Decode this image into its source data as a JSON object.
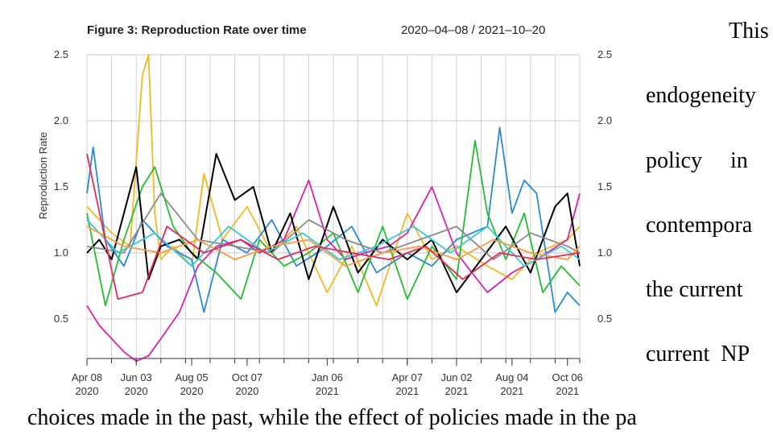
{
  "chart_data": {
    "type": "line",
    "title": "Figure 3: Reproduction Rate over time",
    "date_range": "2020–04–08 / 2021–10–20",
    "xlabel": "",
    "ylabel": "Reproduction Rate",
    "xlim": [
      "2020-04-08",
      "2021-10-20"
    ],
    "ylim": [
      0.2,
      2.5
    ],
    "yticks": [
      "0.5",
      "1.0",
      "1.5",
      "2.0",
      "2.5"
    ],
    "xticks": [
      {
        "date": "2020-04-08",
        "label": [
          "Apr 08",
          "2020"
        ]
      },
      {
        "date": "2020-06-03",
        "label": [
          "Jun 03",
          "2020"
        ]
      },
      {
        "date": "2020-08-05",
        "label": [
          "Aug 05",
          "2020"
        ]
      },
      {
        "date": "2020-10-07",
        "label": [
          "Oct 07",
          "2020"
        ]
      },
      {
        "date": "2021-01-06",
        "label": [
          "Jan 06",
          "2021"
        ]
      },
      {
        "date": "2021-04-07",
        "label": [
          "Apr 07",
          "2021"
        ]
      },
      {
        "date": "2021-06-02",
        "label": [
          "Jun 02",
          "2021"
        ]
      },
      {
        "date": "2021-08-04",
        "label": [
          "Aug 04",
          "2021"
        ]
      },
      {
        "date": "2021-10-06",
        "label": [
          "Oct 06",
          "2021"
        ]
      }
    ],
    "grid": true,
    "dual_y_axis": true,
    "series": [
      {
        "color": "#f5b820",
        "x": [
          "2020-04-08",
          "2020-05-06",
          "2020-05-27",
          "2020-06-10",
          "2020-06-17",
          "2020-06-24",
          "2020-07-01",
          "2020-07-15",
          "2020-08-05",
          "2020-08-19",
          "2020-09-09",
          "2020-10-07",
          "2020-11-04",
          "2020-12-02",
          "2021-01-06",
          "2021-02-03",
          "2021-03-03",
          "2021-04-07",
          "2021-05-05",
          "2021-06-02",
          "2021-07-07",
          "2021-08-04",
          "2021-09-01",
          "2021-10-06",
          "2021-10-20"
        ],
        "y": [
          1.35,
          1.15,
          1.05,
          2.35,
          2.5,
          1.3,
          0.95,
          1.05,
          0.9,
          1.6,
          1.1,
          1.35,
          1.0,
          1.2,
          0.7,
          1.05,
          0.6,
          1.3,
          0.95,
          1.05,
          0.9,
          0.8,
          1.0,
          1.1,
          1.2
        ]
      },
      {
        "color": "#e020a8",
        "x": [
          "2020-04-08",
          "2020-04-22",
          "2020-05-06",
          "2020-05-20",
          "2020-06-03",
          "2020-06-17",
          "2020-07-01",
          "2020-07-22",
          "2020-08-12",
          "2020-09-02",
          "2020-09-30",
          "2020-10-21",
          "2020-11-18",
          "2020-12-16",
          "2021-01-06",
          "2021-01-27",
          "2021-02-17",
          "2021-03-17",
          "2021-04-07",
          "2021-05-05",
          "2021-06-02",
          "2021-07-07",
          "2021-08-04",
          "2021-09-01",
          "2021-10-06",
          "2021-10-20"
        ],
        "y": [
          0.6,
          0.45,
          0.35,
          0.25,
          0.18,
          0.22,
          0.35,
          0.55,
          0.9,
          1.05,
          1.1,
          1.0,
          1.1,
          1.55,
          1.1,
          0.95,
          1.0,
          1.05,
          1.15,
          1.5,
          1.0,
          0.7,
          0.85,
          0.95,
          1.1,
          1.45
        ]
      },
      {
        "color": "#2a8ad8",
        "x": [
          "2020-04-08",
          "2020-04-15",
          "2020-04-29",
          "2020-05-20",
          "2020-06-10",
          "2020-07-08",
          "2020-08-05",
          "2020-08-19",
          "2020-09-09",
          "2020-10-07",
          "2020-11-04",
          "2020-12-02",
          "2021-01-06",
          "2021-02-03",
          "2021-03-03",
          "2021-04-07",
          "2021-05-05",
          "2021-06-02",
          "2021-07-07",
          "2021-07-21",
          "2021-08-04",
          "2021-08-18",
          "2021-09-01",
          "2021-09-22",
          "2021-10-06",
          "2021-10-20"
        ],
        "y": [
          1.45,
          1.8,
          1.1,
          0.9,
          1.25,
          1.05,
          0.95,
          0.55,
          1.1,
          1.0,
          1.25,
          0.9,
          1.05,
          1.2,
          0.85,
          1.0,
          0.9,
          1.1,
          1.2,
          1.95,
          1.3,
          1.55,
          1.45,
          0.55,
          0.7,
          0.6
        ]
      },
      {
        "color": "#22c030",
        "x": [
          "2020-04-08",
          "2020-04-29",
          "2020-05-20",
          "2020-06-10",
          "2020-06-24",
          "2020-07-15",
          "2020-08-05",
          "2020-09-02",
          "2020-09-30",
          "2020-10-21",
          "2020-11-18",
          "2020-12-16",
          "2021-01-13",
          "2021-02-10",
          "2021-03-10",
          "2021-04-07",
          "2021-05-05",
          "2021-06-02",
          "2021-06-23",
          "2021-07-07",
          "2021-07-28",
          "2021-08-18",
          "2021-09-08",
          "2021-09-29",
          "2021-10-20"
        ],
        "y": [
          1.3,
          0.6,
          1.1,
          1.5,
          1.65,
          1.2,
          1.0,
          0.85,
          0.65,
          1.1,
          0.9,
          1.0,
          1.15,
          0.7,
          1.2,
          0.65,
          1.05,
          0.8,
          1.85,
          1.3,
          0.95,
          1.3,
          0.7,
          0.9,
          0.75
        ]
      },
      {
        "color": "#000000",
        "x": [
          "2020-04-08",
          "2020-04-22",
          "2020-05-06",
          "2020-05-20",
          "2020-06-03",
          "2020-06-17",
          "2020-07-01",
          "2020-07-22",
          "2020-08-12",
          "2020-09-02",
          "2020-09-23",
          "2020-10-14",
          "2020-11-04",
          "2020-11-25",
          "2020-12-16",
          "2021-01-13",
          "2021-02-10",
          "2021-03-10",
          "2021-04-07",
          "2021-05-05",
          "2021-06-02",
          "2021-06-30",
          "2021-07-28",
          "2021-08-25",
          "2021-09-22",
          "2021-10-06",
          "2021-10-20"
        ],
        "y": [
          1.0,
          1.1,
          0.95,
          1.3,
          1.65,
          0.8,
          1.05,
          1.1,
          0.95,
          1.75,
          1.4,
          1.5,
          1.0,
          1.3,
          0.8,
          1.35,
          0.85,
          1.1,
          0.95,
          1.1,
          0.7,
          0.95,
          1.2,
          0.85,
          1.35,
          1.45,
          0.9
        ]
      },
      {
        "color": "#8a8a8a",
        "x": [
          "2020-04-08",
          "2020-05-20",
          "2020-07-01",
          "2020-08-12",
          "2020-09-23",
          "2020-11-04",
          "2020-12-16",
          "2021-01-27",
          "2021-03-10",
          "2021-04-21",
          "2021-06-02",
          "2021-07-14",
          "2021-08-25",
          "2021-10-06",
          "2021-10-20"
        ],
        "y": [
          1.05,
          1.0,
          1.45,
          1.1,
          1.05,
          1.0,
          1.25,
          1.1,
          1.0,
          1.1,
          1.2,
          0.95,
          1.15,
          1.05,
          1.0
        ]
      },
      {
        "color": "#38c8d8",
        "x": [
          "2020-04-08",
          "2020-05-13",
          "2020-06-24",
          "2020-08-05",
          "2020-09-16",
          "2020-10-28",
          "2020-12-09",
          "2021-01-20",
          "2021-03-03",
          "2021-04-14",
          "2021-05-26",
          "2021-07-07",
          "2021-08-18",
          "2021-09-29",
          "2021-10-20"
        ],
        "y": [
          1.25,
          1.0,
          1.15,
          0.9,
          1.2,
          1.0,
          1.15,
          0.95,
          1.05,
          1.2,
          1.0,
          1.2,
          0.9,
          1.05,
          0.95
        ]
      },
      {
        "color": "#ff9a3c",
        "x": [
          "2020-04-08",
          "2020-05-20",
          "2020-07-01",
          "2020-08-12",
          "2020-09-23",
          "2020-11-04",
          "2020-12-16",
          "2021-01-27",
          "2021-03-10",
          "2021-04-21",
          "2021-06-02",
          "2021-07-14",
          "2021-08-25",
          "2021-10-06",
          "2021-10-20"
        ],
        "y": [
          1.2,
          1.05,
          1.0,
          1.1,
          0.95,
          1.05,
          1.1,
          0.9,
          1.0,
          1.05,
          0.95,
          1.1,
          1.0,
          0.95,
          1.05
        ]
      },
      {
        "color": "#e8285a",
        "x": [
          "2020-04-08",
          "2020-05-13",
          "2020-06-10",
          "2020-07-08",
          "2020-08-19",
          "2020-09-30",
          "2020-11-11",
          "2020-12-23",
          "2021-02-03",
          "2021-03-17",
          "2021-04-28",
          "2021-06-09",
          "2021-07-21",
          "2021-09-01",
          "2021-10-20"
        ],
        "y": [
          1.75,
          0.65,
          0.7,
          1.2,
          1.0,
          1.1,
          0.95,
          1.05,
          1.0,
          0.95,
          1.05,
          0.8,
          1.0,
          0.95,
          1.0
        ]
      }
    ]
  },
  "text": {
    "bottom_line": "choices made in the past, while the effect of policies made in the pa",
    "right_lines": [
      "This",
      "endogeneity",
      "policy     in",
      "contempora",
      "the current",
      "current  NP"
    ]
  }
}
